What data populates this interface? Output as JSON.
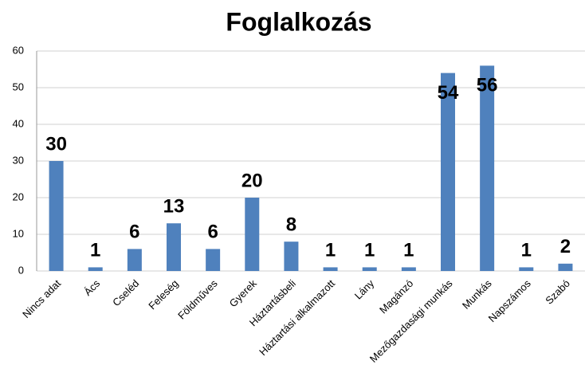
{
  "chart_data": {
    "type": "bar",
    "title": "Foglalkozás",
    "categories": [
      "Nincs adat",
      "Ács",
      "Cseléd",
      "Feleség",
      "Földműves",
      "Gyerek",
      "Háztartásbeli",
      "Háztartási alkalmazott",
      "Lány",
      "Magánzó",
      "Mezőgazdasági munkás",
      "Munkás",
      "Napszámos",
      "Szabó"
    ],
    "values": [
      30,
      1,
      6,
      13,
      6,
      20,
      8,
      1,
      1,
      1,
      54,
      56,
      1,
      2
    ],
    "color": "#4f81bd",
    "ylim": [
      0,
      60
    ],
    "yticks": [
      0,
      10,
      20,
      30,
      40,
      50,
      60
    ],
    "grid": true
  }
}
